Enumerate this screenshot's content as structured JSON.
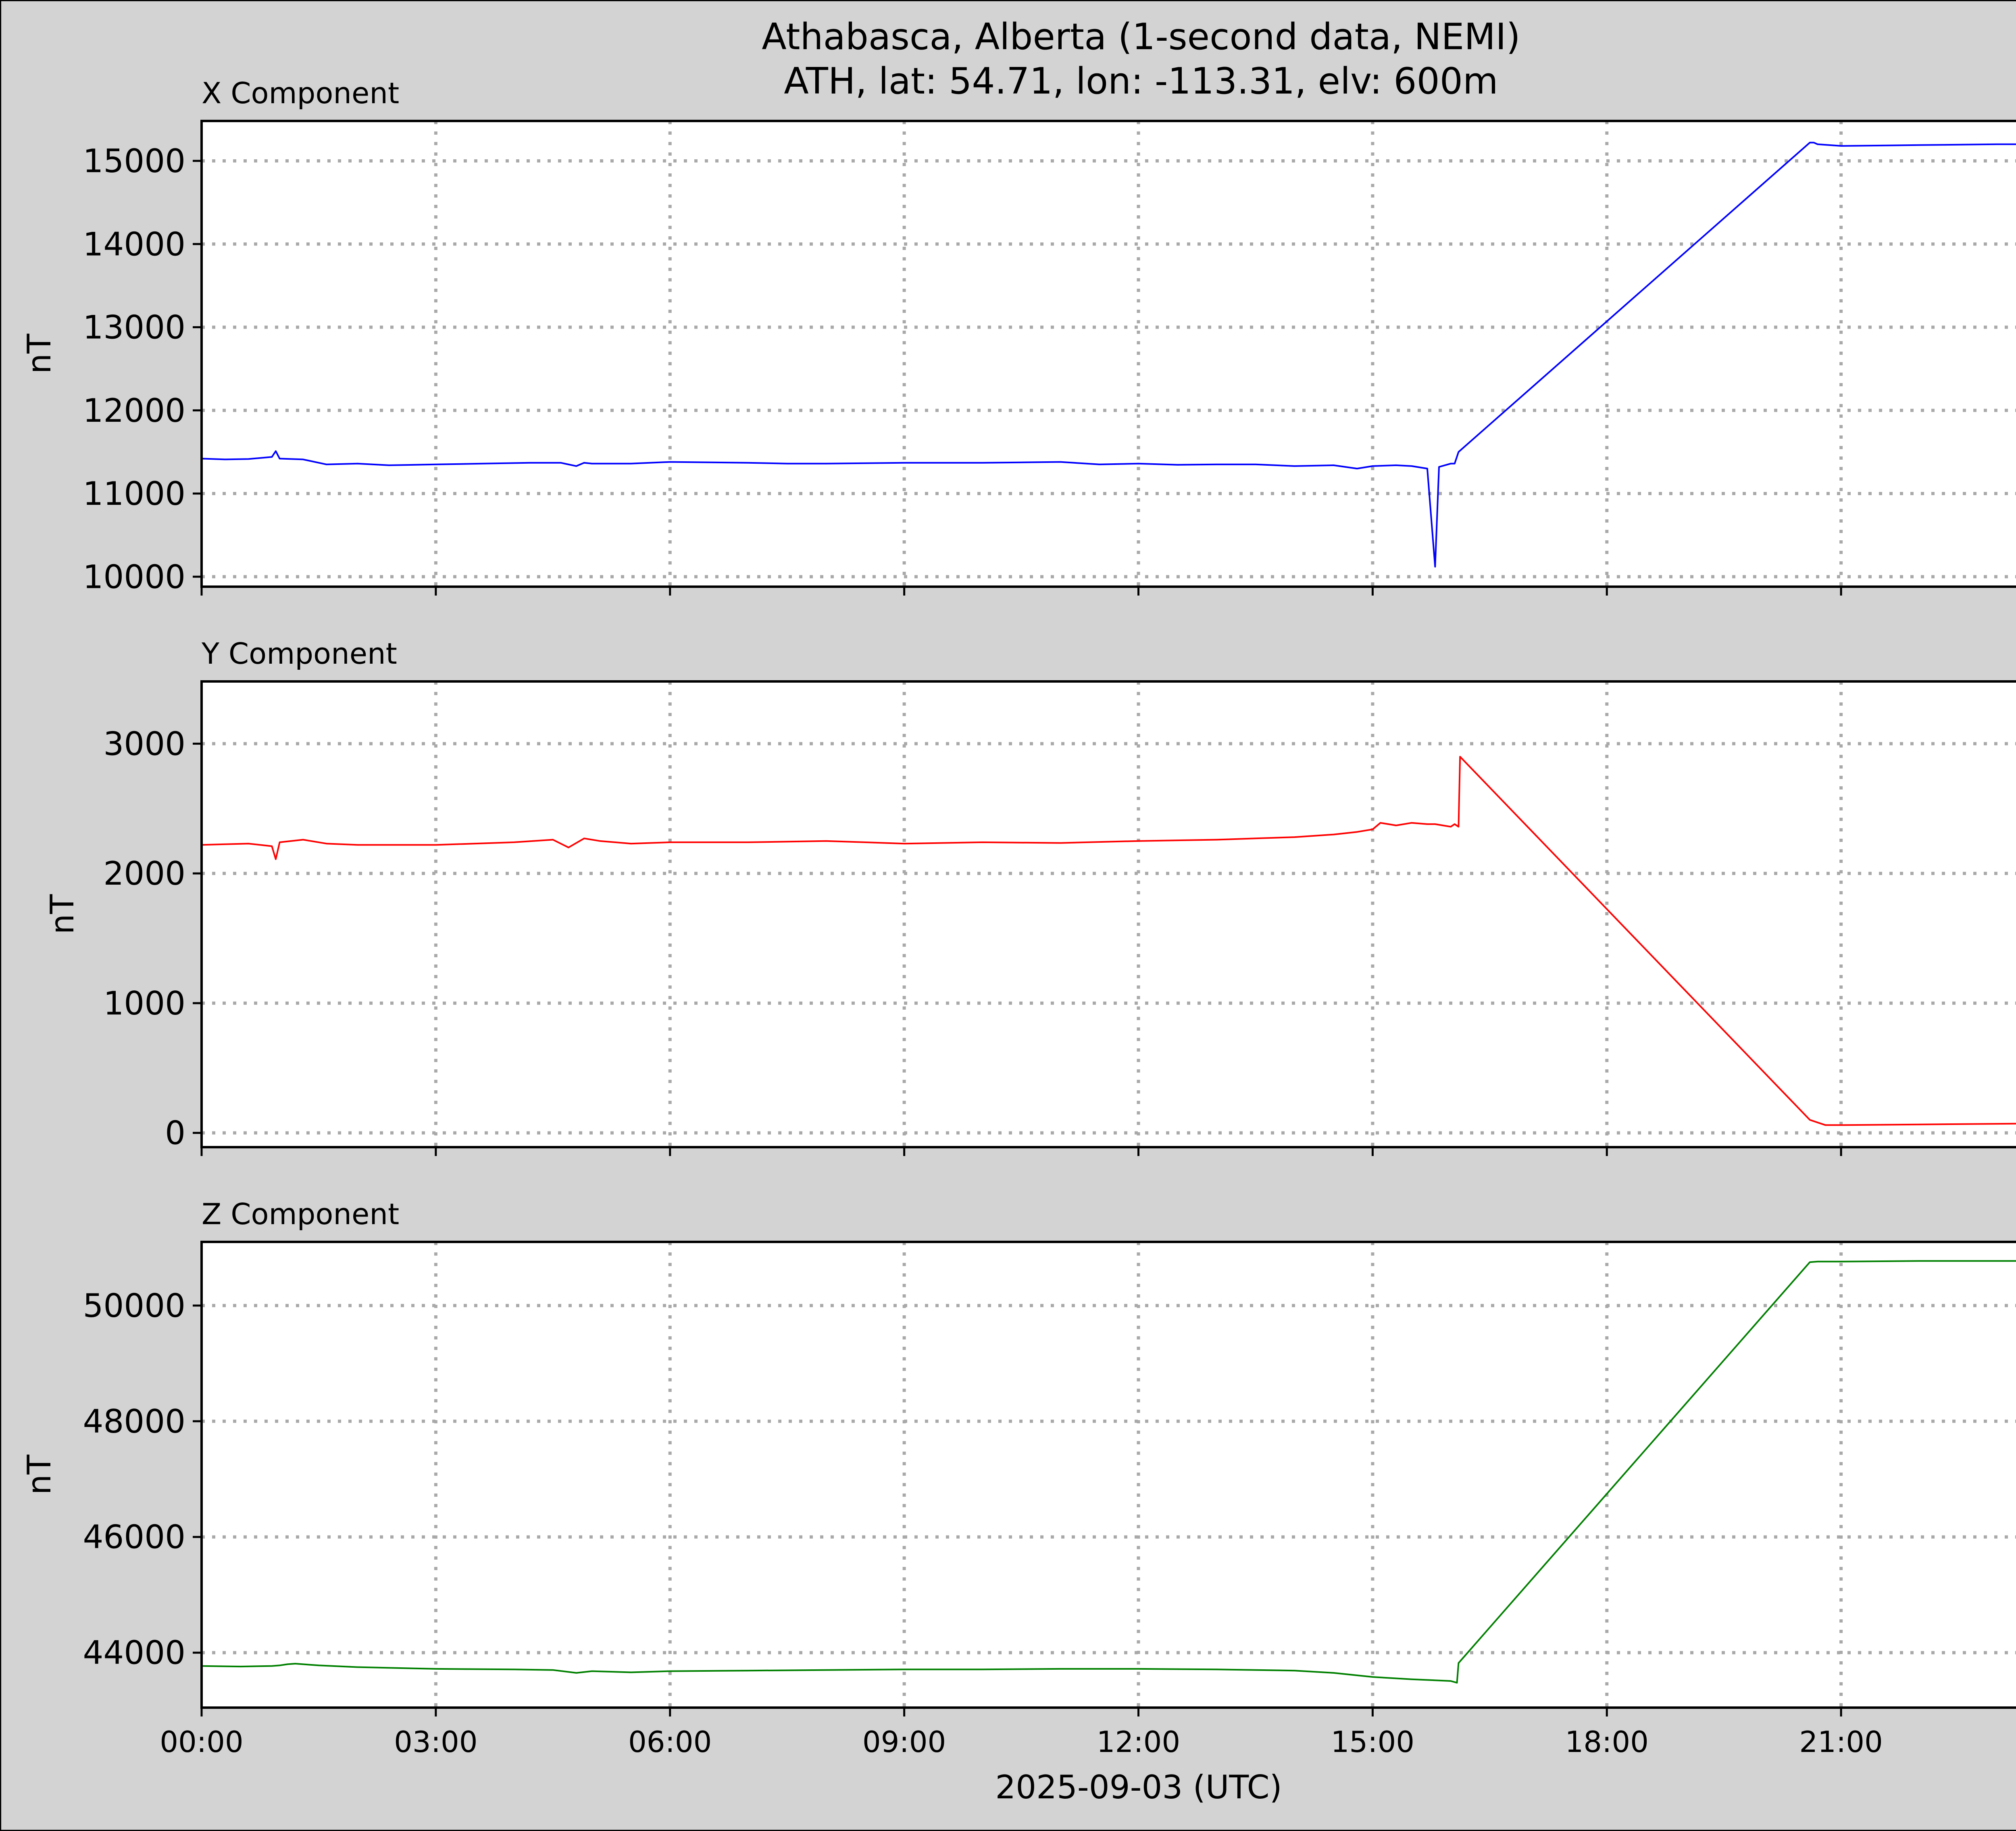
{
  "figure": {
    "title_line1": "Athabasca, Alberta (1-second data, NEMI)",
    "title_line2": "ATH, lat: 54.71, lon: -113.31, elv: 600m",
    "xlabel": "2025-09-03 (UTC)",
    "background": "#d3d3d3",
    "x_tick_labels": [
      "00:00",
      "03:00",
      "06:00",
      "09:00",
      "12:00",
      "15:00",
      "18:00",
      "21:00"
    ]
  },
  "chart_data": [
    {
      "type": "line",
      "title": "X Component",
      "ylabel": "nT",
      "color": "#0000ff",
      "xlim": [
        0,
        24
      ],
      "ylim": [
        9880,
        15480
      ],
      "yticks": [
        10000,
        11000,
        12000,
        13000,
        14000,
        15000
      ],
      "grid": true,
      "x_unit": "hours UTC",
      "x": [
        0,
        0.3,
        0.6,
        0.9,
        0.95,
        1.0,
        1.3,
        1.6,
        2.0,
        2.4,
        3.0,
        3.6,
        4.2,
        4.6,
        4.8,
        4.9,
        5.0,
        5.5,
        6.0,
        7.0,
        7.5,
        8.0,
        9.0,
        10.0,
        10.5,
        11.0,
        11.5,
        12.0,
        12.5,
        13.0,
        13.5,
        14.0,
        14.5,
        14.8,
        15.0,
        15.3,
        15.5,
        15.7,
        15.8,
        15.85,
        16.0,
        16.05,
        16.1,
        20.6,
        20.65,
        20.7,
        21.0,
        22.0,
        23.0,
        24.0
      ],
      "values": [
        11420,
        11410,
        11415,
        11440,
        11510,
        11420,
        11410,
        11350,
        11360,
        11340,
        11350,
        11360,
        11370,
        11370,
        11330,
        11370,
        11360,
        11360,
        11380,
        11370,
        11360,
        11360,
        11370,
        11370,
        11375,
        11380,
        11350,
        11360,
        11345,
        11350,
        11350,
        11330,
        11340,
        11300,
        11330,
        11340,
        11330,
        11300,
        10120,
        11320,
        11360,
        11360,
        11500,
        15220,
        15220,
        15200,
        15180,
        15190,
        15200,
        15200
      ]
    },
    {
      "type": "line",
      "title": "Y Component",
      "ylabel": "nT",
      "color": "#ff0000",
      "xlim": [
        0,
        24
      ],
      "ylim": [
        -110,
        3480
      ],
      "yticks": [
        0,
        1000,
        2000,
        3000
      ],
      "grid": true,
      "x_unit": "hours UTC",
      "x": [
        0,
        0.3,
        0.6,
        0.9,
        0.95,
        1.0,
        1.3,
        1.6,
        2.0,
        3.0,
        4.0,
        4.5,
        4.7,
        4.9,
        5.1,
        5.5,
        6.0,
        7.0,
        8.0,
        9.0,
        10.0,
        11.0,
        12.0,
        12.5,
        13.0,
        13.5,
        14.0,
        14.5,
        14.8,
        15.0,
        15.1,
        15.2,
        15.3,
        15.5,
        15.7,
        15.8,
        15.9,
        16.0,
        16.05,
        16.1,
        16.12,
        20.6,
        20.7,
        20.8,
        21.0,
        22.0,
        23.0,
        24.0
      ],
      "values": [
        2220,
        2225,
        2230,
        2210,
        2110,
        2240,
        2260,
        2230,
        2220,
        2220,
        2240,
        2260,
        2200,
        2270,
        2250,
        2230,
        2240,
        2240,
        2250,
        2230,
        2240,
        2235,
        2250,
        2255,
        2260,
        2270,
        2280,
        2300,
        2320,
        2340,
        2390,
        2380,
        2370,
        2390,
        2380,
        2380,
        2370,
        2360,
        2380,
        2360,
        2900,
        100,
        80,
        60,
        60,
        65,
        70,
        75
      ]
    },
    {
      "type": "line",
      "title": "Z Component",
      "ylabel": "nT",
      "color": "#008000",
      "xlim": [
        0,
        24
      ],
      "ylim": [
        43050,
        51100
      ],
      "yticks": [
        44000,
        46000,
        48000,
        50000
      ],
      "grid": true,
      "x_unit": "hours UTC",
      "x": [
        0,
        0.5,
        0.9,
        1.0,
        1.1,
        1.2,
        1.5,
        2.0,
        3.0,
        4.0,
        4.5,
        4.8,
        5.0,
        5.5,
        6.0,
        7.0,
        8.0,
        9.0,
        10.0,
        11.0,
        12.0,
        13.0,
        14.0,
        14.5,
        15.0,
        15.5,
        16.0,
        16.08,
        16.1,
        20.6,
        20.7,
        21.0,
        22.0,
        23.0,
        24.0
      ],
      "values": [
        43770,
        43760,
        43770,
        43780,
        43800,
        43810,
        43780,
        43750,
        43720,
        43710,
        43700,
        43650,
        43680,
        43660,
        43680,
        43690,
        43700,
        43710,
        43710,
        43720,
        43720,
        43710,
        43690,
        43650,
        43580,
        43540,
        43510,
        43480,
        43820,
        50750,
        50760,
        50760,
        50770,
        50770,
        50770
      ]
    }
  ]
}
